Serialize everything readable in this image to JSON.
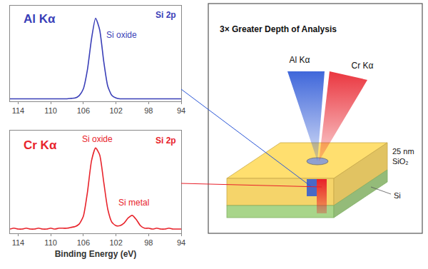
{
  "chart_data": [
    {
      "type": "line",
      "title": "Si 2p",
      "x": [
        115,
        114.5,
        114,
        113.5,
        113,
        112.5,
        112,
        111.5,
        111,
        110.5,
        110,
        109.5,
        109,
        108.5,
        108,
        107.5,
        107,
        106.5,
        106,
        105.5,
        105,
        104.5,
        104,
        103.5,
        103,
        102.5,
        102,
        101.5,
        101,
        100.5,
        100,
        99.5,
        99,
        98.5,
        98,
        97.5,
        97,
        96.5,
        96,
        95.5,
        95,
        94.5,
        94
      ],
      "series": [
        {
          "name": "Al Kα",
          "color": "#3a3fb8",
          "values": [
            0.03,
            0.03,
            0.03,
            0.03,
            0.03,
            0.03,
            0.03,
            0.03,
            0.03,
            0.03,
            0.03,
            0.03,
            0.03,
            0.03,
            0.03,
            0.035,
            0.04,
            0.07,
            0.15,
            0.38,
            0.75,
            1.0,
            0.86,
            0.48,
            0.18,
            0.07,
            0.04,
            0.03,
            0.03,
            0.03,
            0.03,
            0.03,
            0.03,
            0.03,
            0.03,
            0.03,
            0.03,
            0.03,
            0.03,
            0.03,
            0.03,
            0.03,
            0.03
          ]
        }
      ],
      "annotations": [
        {
          "text": "Si oxide",
          "x": 101.3,
          "y": 0.8
        }
      ],
      "xlim": [
        115,
        94
      ],
      "xticks": [
        114,
        110,
        106,
        102,
        98,
        94
      ],
      "ylim": [
        0,
        1.15
      ],
      "tick_labels": "x",
      "grid": false
    },
    {
      "type": "line",
      "title": "Si 2p",
      "xlabel": "Binding Energy (eV)",
      "x": [
        115,
        114.5,
        114,
        113.5,
        113,
        112.5,
        112,
        111.5,
        111,
        110.5,
        110,
        109.5,
        109,
        108.5,
        108,
        107.5,
        107,
        106.5,
        106,
        105.5,
        105,
        104.5,
        104,
        103.5,
        103,
        102.5,
        102,
        101.5,
        101,
        100.5,
        100,
        99.5,
        99,
        98.5,
        98,
        97.5,
        97,
        96.5,
        96,
        95.5,
        95,
        94.5,
        94
      ],
      "series": [
        {
          "name": "Cr Kα",
          "color": "#e8232b",
          "values": [
            0.05,
            0.06,
            0.05,
            0.05,
            0.06,
            0.05,
            0.05,
            0.06,
            0.05,
            0.05,
            0.06,
            0.05,
            0.06,
            0.06,
            0.06,
            0.07,
            0.08,
            0.11,
            0.2,
            0.48,
            0.85,
            1.0,
            0.92,
            0.6,
            0.28,
            0.13,
            0.09,
            0.09,
            0.12,
            0.18,
            0.21,
            0.16,
            0.09,
            0.06,
            0.06,
            0.05,
            0.06,
            0.05,
            0.05,
            0.06,
            0.05,
            0.05,
            0.05
          ]
        }
      ],
      "annotations": [
        {
          "text": "Si oxide",
          "x": 104.3,
          "y": 1.1
        },
        {
          "text": "Si metal",
          "x": 99.8,
          "y": 0.36
        }
      ],
      "xlim": [
        115,
        94
      ],
      "xticks": [
        114,
        110,
        106,
        102,
        98,
        94
      ],
      "ylim": [
        0,
        1.2
      ],
      "tick_labels": "x",
      "grid": false
    }
  ],
  "diagram": {
    "title": "3× Greater Depth of Analysis",
    "beams": [
      {
        "label": "Al Kα",
        "color": "#2a56d6"
      },
      {
        "label": "Cr Kα",
        "color": "#e8202a"
      }
    ],
    "layers": [
      {
        "lines": [
          "25 nm",
          "SiO₂"
        ],
        "color": "#f5d46a"
      },
      {
        "lines": [
          "Si"
        ],
        "color": "#a8d58a"
      }
    ]
  }
}
